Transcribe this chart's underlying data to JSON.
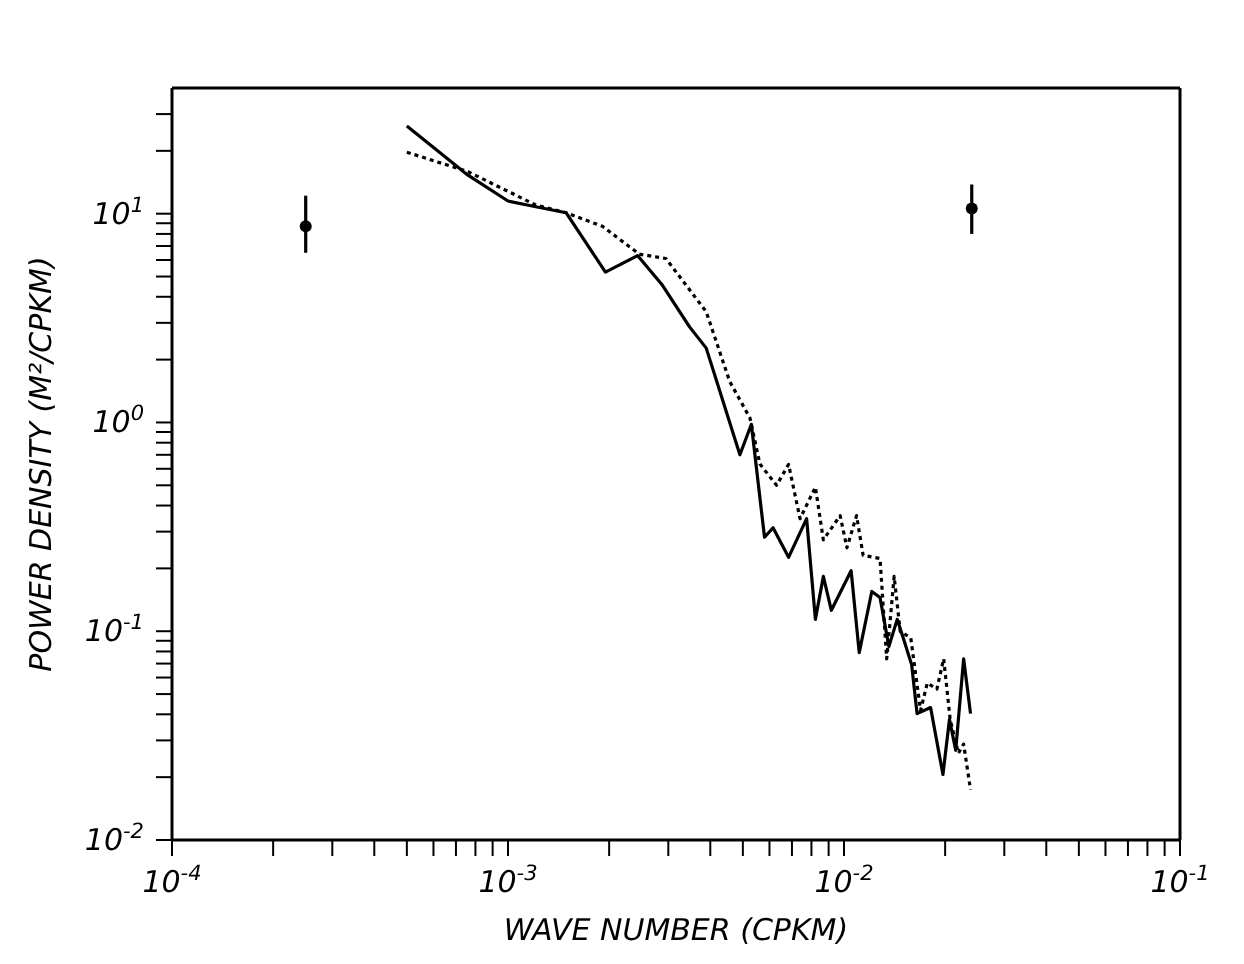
{
  "chart_data": {
    "type": "line",
    "xlabel": "WAVE NUMBER (CPKM)",
    "ylabel": "POWER DENSITY (M²/CPKM)",
    "log": "xy",
    "xlim": [
      0.0001,
      0.1
    ],
    "ylim": [
      0.01,
      40
    ],
    "xticks": [
      {
        "value": 0.0001,
        "label": "10$^{-4}$"
      },
      {
        "value": 0.0002,
        "label": null
      },
      {
        "value": 0.0003,
        "label": null
      },
      {
        "value": 0.0004,
        "label": null
      },
      {
        "value": 0.0005,
        "label": null
      },
      {
        "value": 0.0006,
        "label": null
      },
      {
        "value": 0.0007,
        "label": null
      },
      {
        "value": 0.0008,
        "label": null
      },
      {
        "value": 0.0009,
        "label": null
      },
      {
        "value": 0.001,
        "label": "10$^{-3}$"
      },
      {
        "value": 0.002,
        "label": null
      },
      {
        "value": 0.003,
        "label": null
      },
      {
        "value": 0.004,
        "label": null
      },
      {
        "value": 0.005,
        "label": null
      },
      {
        "value": 0.006,
        "label": null
      },
      {
        "value": 0.007,
        "label": null
      },
      {
        "value": 0.008,
        "label": null
      },
      {
        "value": 0.009,
        "label": null
      },
      {
        "value": 0.01,
        "label": "10$^{-2}$"
      },
      {
        "value": 0.02,
        "label": null
      },
      {
        "value": 0.03,
        "label": null
      },
      {
        "value": 0.04,
        "label": null
      },
      {
        "value": 0.05,
        "label": null
      },
      {
        "value": 0.06,
        "label": null
      },
      {
        "value": 0.07,
        "label": null
      },
      {
        "value": 0.08,
        "label": null
      },
      {
        "value": 0.09,
        "label": null
      },
      {
        "value": 0.1,
        "label": "10$^{-1}$"
      }
    ],
    "yticks": [
      {
        "value": 0.01,
        "label": "10$^{-2}$"
      },
      {
        "value": 0.02,
        "label": null
      },
      {
        "value": 0.03,
        "label": null
      },
      {
        "value": 0.04,
        "label": null
      },
      {
        "value": 0.05,
        "label": null
      },
      {
        "value": 0.06,
        "label": null
      },
      {
        "value": 0.07,
        "label": null
      },
      {
        "value": 0.08,
        "label": null
      },
      {
        "value": 0.09,
        "label": null
      },
      {
        "value": 0.1,
        "label": "10$^{-1}$"
      },
      {
        "value": 0.2,
        "label": null
      },
      {
        "value": 0.3,
        "label": null
      },
      {
        "value": 0.4,
        "label": null
      },
      {
        "value": 0.5,
        "label": null
      },
      {
        "value": 0.6,
        "label": null
      },
      {
        "value": 0.7,
        "label": null
      },
      {
        "value": 0.8,
        "label": null
      },
      {
        "value": 0.9,
        "label": null
      },
      {
        "value": 1,
        "label": "10$^{0}$"
      },
      {
        "value": 2,
        "label": null
      },
      {
        "value": 3,
        "label": null
      },
      {
        "value": 4,
        "label": null
      },
      {
        "value": 5,
        "label": null
      },
      {
        "value": 6,
        "label": null
      },
      {
        "value": 7,
        "label": null
      },
      {
        "value": 8,
        "label": null
      },
      {
        "value": 9,
        "label": null
      },
      {
        "value": 10,
        "label": "10$^{1}$"
      },
      {
        "value": 20,
        "label": null
      },
      {
        "value": 30,
        "label": null
      }
    ],
    "series": [
      {
        "color": "#000000",
        "line_style": "solid",
        "marker": "none",
        "x": [
          0.0005,
          0.00076,
          0.001,
          0.00121,
          0.00149,
          0.00195,
          0.00243,
          0.00287,
          0.00347,
          0.00389,
          0.0049,
          0.0053,
          0.0058,
          0.00615,
          0.00684,
          0.00774,
          0.00822,
          0.00868,
          0.00917,
          0.0105,
          0.0111,
          0.0121,
          0.0128,
          0.0136,
          0.0144,
          0.0151,
          0.0159,
          0.0165,
          0.0181,
          0.0197,
          0.0206,
          0.0215,
          0.0227,
          0.0238
        ],
        "values": [
          26.3,
          15.3,
          11.5,
          10.8,
          10.1,
          5.25,
          6.3,
          4.58,
          2.87,
          2.27,
          0.7,
          0.98,
          0.282,
          0.313,
          0.226,
          0.346,
          0.114,
          0.183,
          0.126,
          0.195,
          0.079,
          0.155,
          0.145,
          0.0845,
          0.114,
          0.09,
          0.069,
          0.0403,
          0.0431,
          0.0206,
          0.0378,
          0.0269,
          0.0738,
          0.0403
        ]
      },
      {
        "color": "#000000",
        "line_style": "dotted",
        "marker": "none",
        "x": [
          0.0005,
          0.00076,
          0.00121,
          0.00149,
          0.00191,
          0.00246,
          0.00295,
          0.00389,
          0.00457,
          0.00525,
          0.00562,
          0.0063,
          0.00684,
          0.0074,
          0.00822,
          0.00868,
          0.00974,
          0.0102,
          0.0109,
          0.0114,
          0.0128,
          0.0134,
          0.0141,
          0.0147,
          0.0158,
          0.0169,
          0.0177,
          0.0189,
          0.0198,
          0.0207,
          0.0219,
          0.0227,
          0.0238
        ],
        "values": [
          19.7,
          15.9,
          11,
          10.1,
          8.7,
          6.4,
          6.1,
          3.39,
          1.57,
          1.05,
          0.632,
          0.5,
          0.63,
          0.346,
          0.49,
          0.274,
          0.358,
          0.251,
          0.358,
          0.231,
          0.223,
          0.0738,
          0.183,
          0.0998,
          0.093,
          0.0417,
          0.0565,
          0.0528,
          0.0738,
          0.0378,
          0.026,
          0.0288,
          0.0174
        ]
      },
      {
        "type": "scatter",
        "color": "#000000",
        "marker": "circle",
        "x": [
          0.00025,
          0.024
        ],
        "values": [
          8.7,
          10.6
        ],
        "errors": [
          [
            6.5,
            12.2
          ],
          [
            8,
            13.8
          ]
        ]
      }
    ]
  }
}
